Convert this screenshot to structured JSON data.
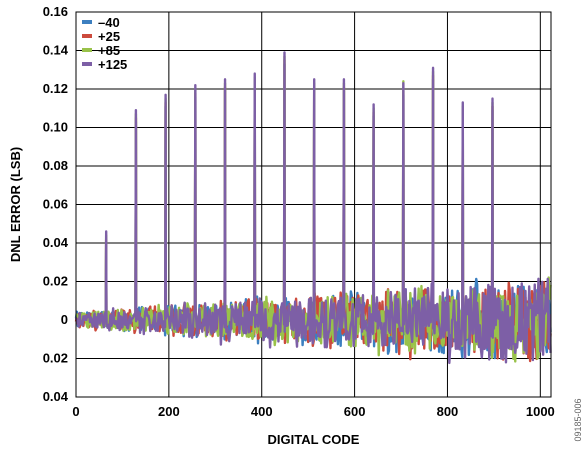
{
  "chart_data": {
    "type": "line",
    "title": "",
    "xlabel": "DIGITAL CODE",
    "ylabel": "DNL ERROR (LSB)",
    "xlim": [
      0,
      1023
    ],
    "ylim": [
      -0.04,
      0.16
    ],
    "xticks": [
      0,
      200,
      400,
      600,
      800,
      1000
    ],
    "yticks": [
      -0.04,
      -0.02,
      0,
      0.02,
      0.04,
      0.06,
      0.08,
      0.1,
      0.12,
      0.14,
      0.16
    ],
    "ytick_labels": [
      "0.04",
      "0.02",
      "0",
      "0.02",
      "0.04",
      "0.06",
      "0.08",
      "0.10",
      "0.12",
      "0.14",
      "0.16"
    ],
    "grid": true,
    "legend_position": "top-left",
    "series": [
      {
        "name": "–40",
        "color": "#3c7fc0"
      },
      {
        "name": "+25",
        "color": "#cc4a3c"
      },
      {
        "name": "+85",
        "color": "#99c24a"
      },
      {
        "name": "+125",
        "color": "#7d5fa6"
      }
    ],
    "spikes": [
      {
        "x": 65,
        "y": 0.046
      },
      {
        "x": 129,
        "y": 0.109
      },
      {
        "x": 193,
        "y": 0.117
      },
      {
        "x": 257,
        "y": 0.122
      },
      {
        "x": 321,
        "y": 0.125
      },
      {
        "x": 385,
        "y": 0.128
      },
      {
        "x": 449,
        "y": 0.139
      },
      {
        "x": 513,
        "y": 0.125
      },
      {
        "x": 577,
        "y": 0.125
      },
      {
        "x": 641,
        "y": 0.112
      },
      {
        "x": 705,
        "y": 0.123
      },
      {
        "x": 769,
        "y": 0.131
      },
      {
        "x": 833,
        "y": 0.113
      },
      {
        "x": 897,
        "y": 0.115
      }
    ],
    "noise_band": {
      "start": {
        "x": 0,
        "min": -0.005,
        "max": 0.005
      },
      "end": {
        "x": 1023,
        "min": -0.025,
        "max": 0.025
      }
    },
    "figure_id": "09185-006"
  }
}
